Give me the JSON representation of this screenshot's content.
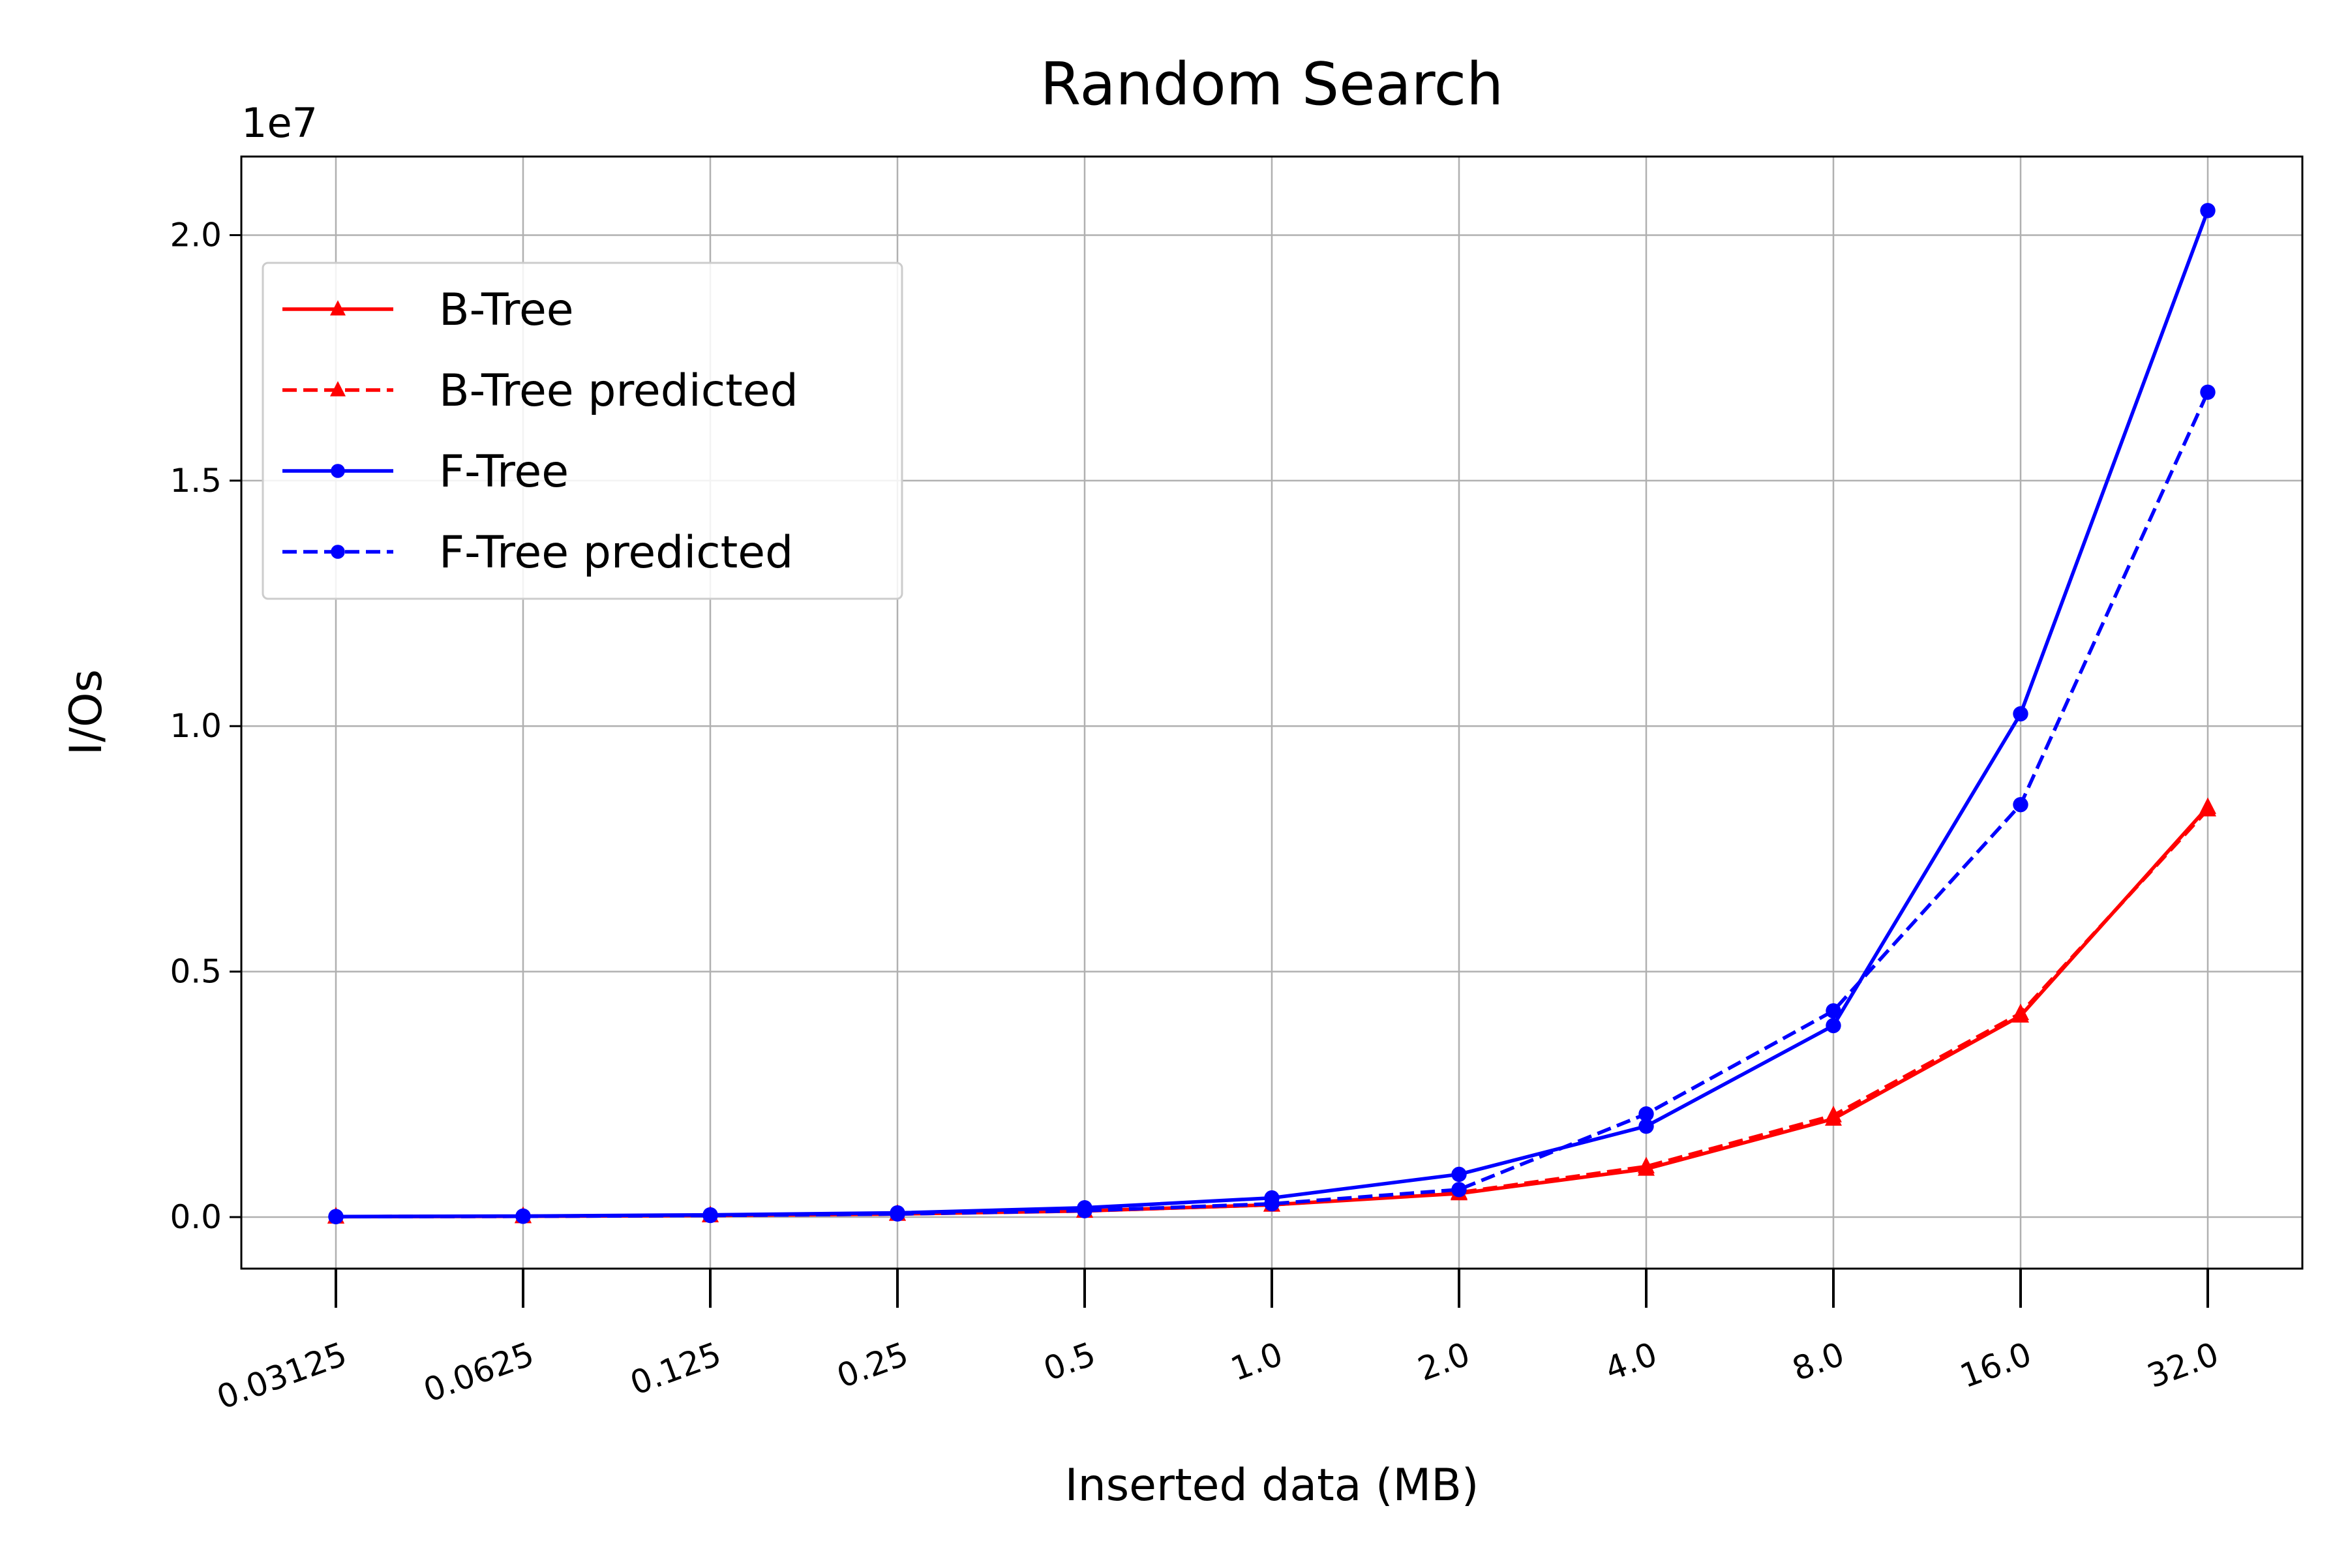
{
  "chart_data": {
    "type": "line",
    "title": "Random Search",
    "xlabel": "Inserted data (MB)",
    "ylabel": "I/Os",
    "y_multiplier_label": "1e7",
    "categories": [
      "0.03125",
      "0.0625",
      "0.125",
      "0.25",
      "0.5",
      "1.0",
      "2.0",
      "4.0",
      "8.0",
      "16.0",
      "32.0"
    ],
    "x_scale": "log2 (categorical ticks)",
    "ylim": [
      -1050000,
      21600000
    ],
    "yticks": [
      0,
      5000000,
      10000000,
      15000000,
      20000000
    ],
    "ytick_labels": [
      "0.0",
      "0.5",
      "1.0",
      "1.5",
      "2.0"
    ],
    "grid": true,
    "legend_position": "upper-left",
    "series": [
      {
        "name": "B-Tree",
        "color": "#ff0000",
        "line_style": "solid",
        "marker": "triangle",
        "values": [
          8000,
          16000,
          32000,
          63000,
          125000,
          250000,
          480000,
          980000,
          2000000,
          4100000,
          8350000
        ]
      },
      {
        "name": "B-Tree predicted",
        "color": "#ff0000",
        "line_style": "dashed",
        "marker": "triangle",
        "values": [
          8000,
          16000,
          32000,
          63000,
          125000,
          250000,
          500000,
          1030000,
          2070000,
          4150000,
          8300000
        ]
      },
      {
        "name": "F-Tree",
        "color": "#0000ff",
        "line_style": "solid",
        "marker": "circle",
        "values": [
          10000,
          20000,
          45000,
          85000,
          190000,
          390000,
          870000,
          1850000,
          3900000,
          10250000,
          20500000
        ]
      },
      {
        "name": "F-Tree predicted",
        "color": "#0000ff",
        "line_style": "dashed",
        "marker": "circle",
        "values": [
          8000,
          16000,
          32000,
          63000,
          130000,
          270000,
          560000,
          2100000,
          4200000,
          8400000,
          16800000
        ]
      }
    ]
  }
}
